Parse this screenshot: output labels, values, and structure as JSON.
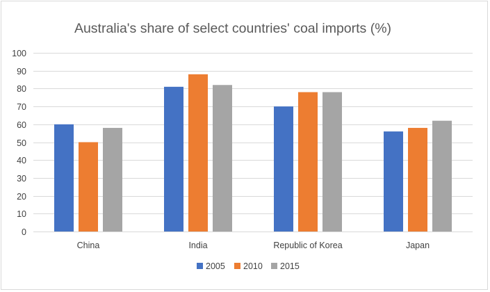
{
  "chart_data": {
    "type": "bar",
    "title": "Australia's share of select countries' coal imports (%)",
    "xlabel": "",
    "ylabel": "",
    "categories": [
      "China",
      "India",
      "Republic of Korea",
      "Japan"
    ],
    "series": [
      {
        "name": "2005",
        "values": [
          60,
          81,
          70,
          56
        ],
        "color": "#4472c4"
      },
      {
        "name": "2010",
        "values": [
          50,
          88,
          78,
          58
        ],
        "color": "#ed7d31"
      },
      {
        "name": "2015",
        "values": [
          58,
          82,
          78,
          62
        ],
        "color": "#a5a5a5"
      }
    ],
    "ylim": [
      0,
      100
    ],
    "yticks": [
      "0",
      "10",
      "20",
      "30",
      "40",
      "50",
      "60",
      "70",
      "80",
      "90",
      "100"
    ],
    "grid": true,
    "legend": "bottom-center",
    "gridline_color": "#d9d9d9"
  }
}
